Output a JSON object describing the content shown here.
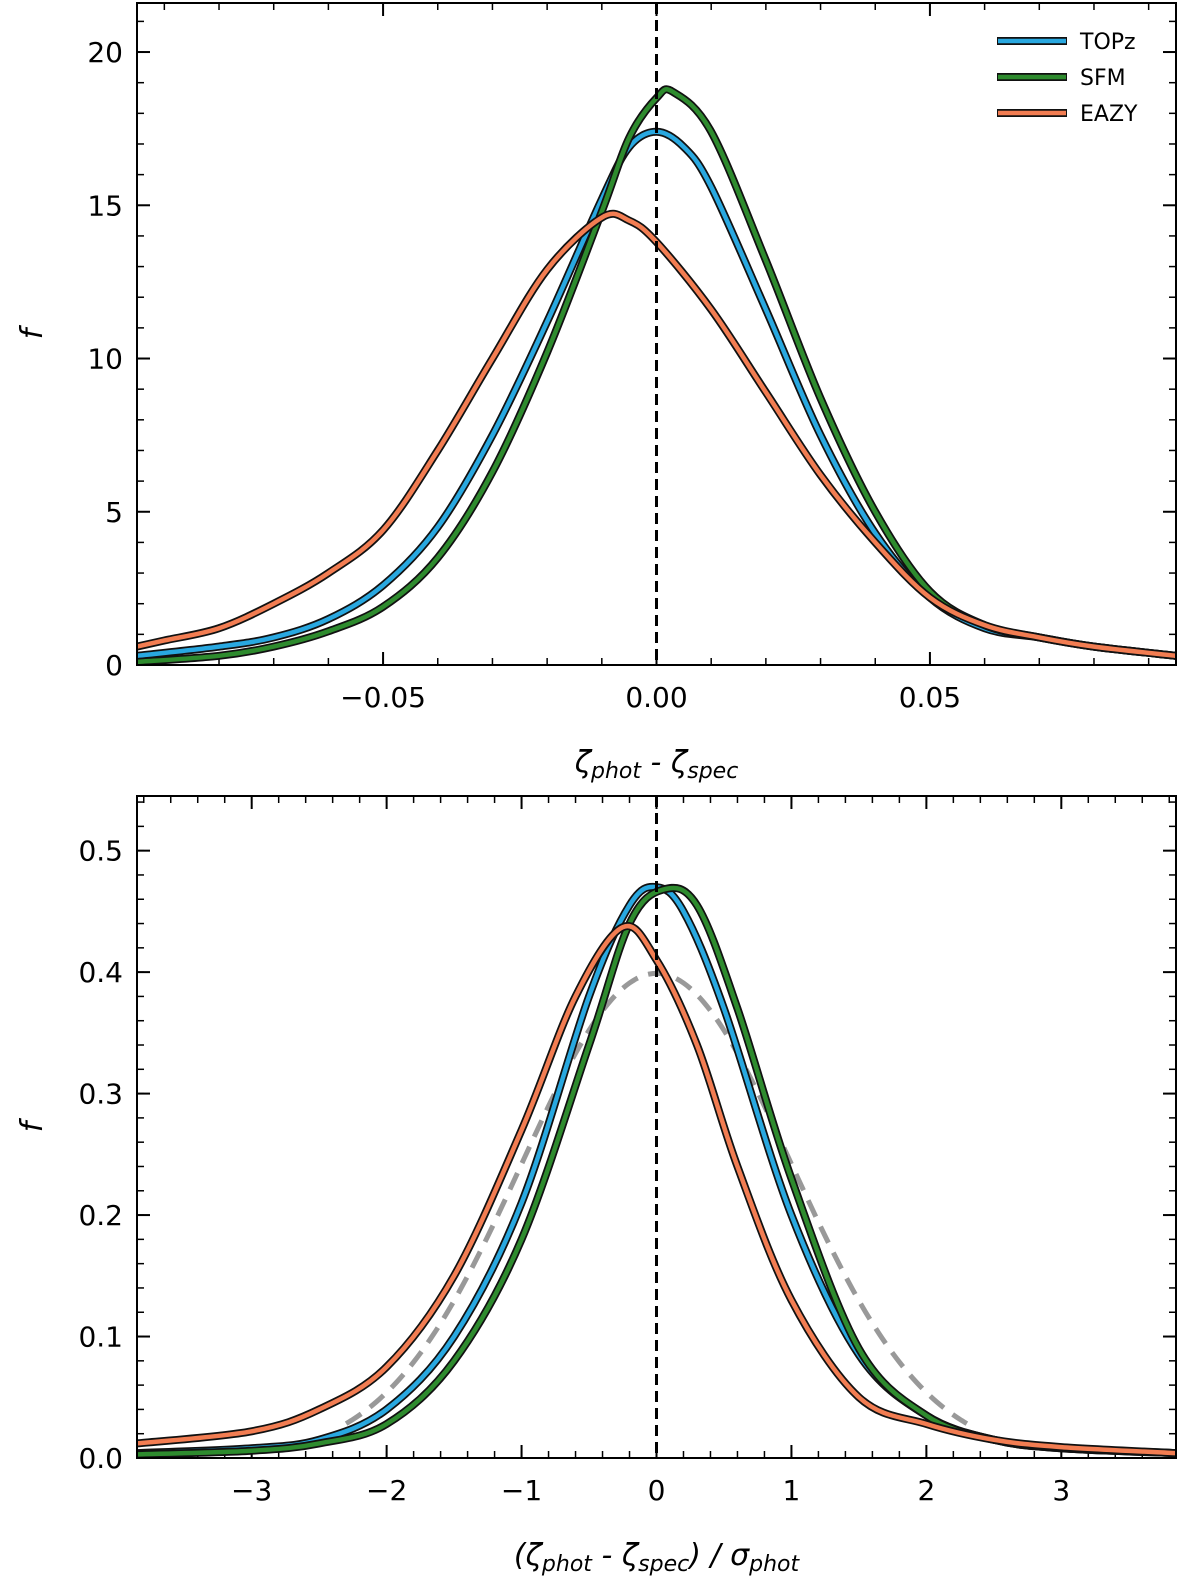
{
  "chart_data": [
    {
      "type": "line",
      "ylabel": "f",
      "xlabel_parts": [
        "ζ",
        "phot",
        " - ζ",
        "spec"
      ],
      "xlim": [
        -0.095,
        0.095
      ],
      "ylim": [
        0,
        21.6
      ],
      "x_ticks": [
        -0.05,
        0.0,
        0.05
      ],
      "x_tick_labels": [
        "−0.05",
        "0.00",
        "0.05"
      ],
      "y_ticks": [
        0,
        5,
        10,
        15,
        20
      ],
      "y_tick_labels": [
        "0",
        "5",
        "10",
        "15",
        "20"
      ],
      "vline_x": 0.0,
      "legend": {
        "position": "top-right",
        "entries": [
          "TOPz",
          "SFM",
          "EAZY"
        ]
      },
      "series": [
        {
          "name": "TOPz",
          "color": "#29a8e0",
          "points": [
            [
              -0.095,
              0.3
            ],
            [
              -0.08,
              0.6
            ],
            [
              -0.07,
              0.9
            ],
            [
              -0.06,
              1.5
            ],
            [
              -0.05,
              2.6
            ],
            [
              -0.04,
              4.5
            ],
            [
              -0.03,
              7.5
            ],
            [
              -0.02,
              11.2
            ],
            [
              -0.01,
              15.2
            ],
            [
              -0.005,
              16.9
            ],
            [
              0.0,
              17.4
            ],
            [
              0.005,
              16.9
            ],
            [
              0.01,
              15.6
            ],
            [
              0.02,
              11.6
            ],
            [
              0.03,
              7.5
            ],
            [
              0.04,
              4.3
            ],
            [
              0.05,
              2.2
            ],
            [
              0.06,
              1.2
            ],
            [
              0.07,
              0.9
            ],
            [
              0.08,
              0.6
            ],
            [
              0.095,
              0.3
            ]
          ]
        },
        {
          "name": "SFM",
          "color": "#2e8b2e",
          "points": [
            [
              -0.095,
              0.1
            ],
            [
              -0.08,
              0.3
            ],
            [
              -0.07,
              0.6
            ],
            [
              -0.06,
              1.1
            ],
            [
              -0.05,
              1.9
            ],
            [
              -0.04,
              3.5
            ],
            [
              -0.03,
              6.3
            ],
            [
              -0.02,
              10.2
            ],
            [
              -0.01,
              14.8
            ],
            [
              -0.005,
              17.2
            ],
            [
              0.0,
              18.5
            ],
            [
              0.003,
              18.7
            ],
            [
              0.01,
              17.4
            ],
            [
              0.02,
              13.2
            ],
            [
              0.03,
              8.7
            ],
            [
              0.04,
              5.0
            ],
            [
              0.05,
              2.4
            ],
            [
              0.06,
              1.3
            ],
            [
              0.07,
              0.9
            ],
            [
              0.08,
              0.6
            ],
            [
              0.095,
              0.3
            ]
          ]
        },
        {
          "name": "EAZY",
          "color": "#f27d52",
          "points": [
            [
              -0.095,
              0.6
            ],
            [
              -0.09,
              0.8
            ],
            [
              -0.08,
              1.2
            ],
            [
              -0.07,
              2.0
            ],
            [
              -0.06,
              3.0
            ],
            [
              -0.05,
              4.4
            ],
            [
              -0.04,
              7.0
            ],
            [
              -0.03,
              10.0
            ],
            [
              -0.02,
              12.9
            ],
            [
              -0.01,
              14.6
            ],
            [
              -0.005,
              14.5
            ],
            [
              0.0,
              13.8
            ],
            [
              0.01,
              11.6
            ],
            [
              0.02,
              8.9
            ],
            [
              0.03,
              6.2
            ],
            [
              0.04,
              4.0
            ],
            [
              0.05,
              2.2
            ],
            [
              0.06,
              1.3
            ],
            [
              0.07,
              0.9
            ],
            [
              0.08,
              0.6
            ],
            [
              0.095,
              0.3
            ]
          ]
        }
      ]
    },
    {
      "type": "line",
      "ylabel": "f",
      "xlabel_parts": [
        "(ζ",
        "phot",
        " - ζ",
        "spec",
        ") / σ",
        "phot"
      ],
      "xlim": [
        -3.85,
        3.85
      ],
      "ylim": [
        0,
        0.545
      ],
      "x_ticks": [
        -3,
        -2,
        -1,
        0,
        1,
        2,
        3
      ],
      "x_tick_labels": [
        "−3",
        "−2",
        "−1",
        "0",
        "1",
        "2",
        "3"
      ],
      "y_ticks": [
        0.0,
        0.1,
        0.2,
        0.3,
        0.4,
        0.5
      ],
      "y_tick_labels": [
        "0.0",
        "0.1",
        "0.2",
        "0.3",
        "0.4",
        "0.5"
      ],
      "vline_x": 0.0,
      "reference": {
        "name": "Gaussian",
        "color": "#999999",
        "mu": 0,
        "sigma": 1,
        "range": [
          -2.3,
          2.3
        ]
      },
      "series": [
        {
          "name": "TOPz",
          "color": "#29a8e0",
          "points": [
            [
              -3.85,
              0.004
            ],
            [
              -3.0,
              0.008
            ],
            [
              -2.5,
              0.015
            ],
            [
              -2.0,
              0.04
            ],
            [
              -1.5,
              0.1
            ],
            [
              -1.0,
              0.21
            ],
            [
              -0.5,
              0.38
            ],
            [
              -0.2,
              0.455
            ],
            [
              0.0,
              0.47
            ],
            [
              0.2,
              0.45
            ],
            [
              0.5,
              0.37
            ],
            [
              1.0,
              0.2
            ],
            [
              1.5,
              0.085
            ],
            [
              2.0,
              0.035
            ],
            [
              2.5,
              0.015
            ],
            [
              3.0,
              0.008
            ],
            [
              3.85,
              0.004
            ]
          ]
        },
        {
          "name": "SFM",
          "color": "#2e8b2e",
          "points": [
            [
              -3.85,
              0.003
            ],
            [
              -3.0,
              0.006
            ],
            [
              -2.5,
              0.012
            ],
            [
              -2.0,
              0.028
            ],
            [
              -1.5,
              0.08
            ],
            [
              -1.0,
              0.18
            ],
            [
              -0.5,
              0.34
            ],
            [
              -0.2,
              0.44
            ],
            [
              0.05,
              0.468
            ],
            [
              0.3,
              0.455
            ],
            [
              0.6,
              0.37
            ],
            [
              1.0,
              0.23
            ],
            [
              1.5,
              0.09
            ],
            [
              2.0,
              0.035
            ],
            [
              2.5,
              0.015
            ],
            [
              3.0,
              0.008
            ],
            [
              3.85,
              0.004
            ]
          ]
        },
        {
          "name": "EAZY",
          "color": "#f27d52",
          "points": [
            [
              -3.85,
              0.012
            ],
            [
              -3.0,
              0.022
            ],
            [
              -2.5,
              0.04
            ],
            [
              -2.0,
              0.075
            ],
            [
              -1.5,
              0.15
            ],
            [
              -1.0,
              0.27
            ],
            [
              -0.6,
              0.38
            ],
            [
              -0.25,
              0.437
            ],
            [
              0.0,
              0.41
            ],
            [
              0.3,
              0.34
            ],
            [
              0.6,
              0.24
            ],
            [
              1.0,
              0.13
            ],
            [
              1.5,
              0.05
            ],
            [
              2.0,
              0.028
            ],
            [
              2.5,
              0.015
            ],
            [
              3.0,
              0.009
            ],
            [
              3.85,
              0.004
            ]
          ]
        }
      ]
    }
  ]
}
